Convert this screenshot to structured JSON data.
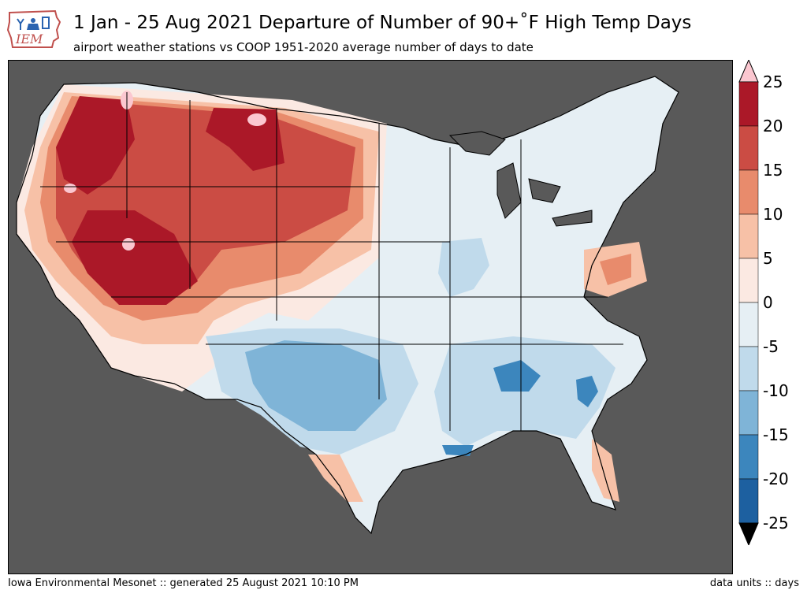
{
  "header": {
    "title": "1 Jan - 25 Aug 2021 Departure of Number of 90+˚F High Temp Days",
    "subtitle": "airport weather stations vs COOP 1951-2020 average number of days to date"
  },
  "logo": {
    "text": "IEM",
    "icon": "iowa-state-outline-logo"
  },
  "colorbar": {
    "labels": [
      "25",
      "20",
      "15",
      "10",
      "5",
      "0",
      "-5",
      "-10",
      "-15",
      "-20",
      "-25"
    ],
    "levels": [
      25,
      20,
      15,
      10,
      5,
      0,
      -5,
      -10,
      -15,
      -20,
      -25
    ],
    "colors": {
      "above_max": "#fbc7d0",
      "20_25": "#ab1828",
      "15_20": "#cb4c44",
      "10_15": "#e88b6c",
      "5_10": "#f7c1a7",
      "0_5": "#fbe9e2",
      "neg5_0": "#e6eff4",
      "neg10_neg5": "#c0daeb",
      "neg15_neg10": "#7fb4d7",
      "neg20_neg15": "#3c86bd",
      "neg25_neg20": "#1d60a0",
      "below_min": "#000000"
    }
  },
  "map": {
    "background_color": "#595959",
    "region": "contiguous United States",
    "description_units": "days"
  },
  "footer": {
    "left": "Iowa Environmental Mesonet :: generated 25 August 2021 10:10 PM",
    "right": "data units :: days"
  }
}
